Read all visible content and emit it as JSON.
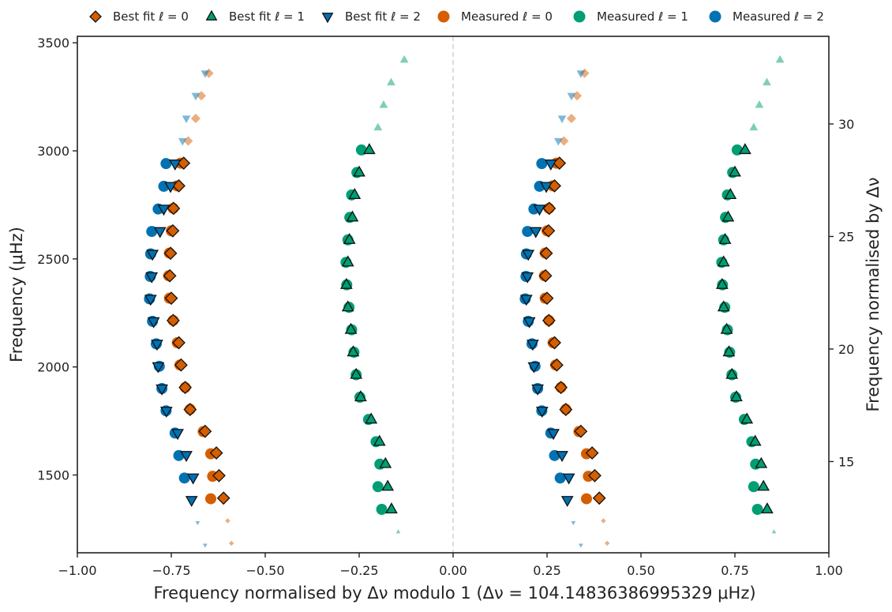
{
  "chart_data": {
    "type": "scatter",
    "xlabel": "Frequency normalised by Δν modulo 1 (Δν = 104.14836386995329 μHz)",
    "ylabel": "Frequency (μHz)",
    "y2label": "Frequency normalised by Δν",
    "xlim": [
      -1.0,
      1.0
    ],
    "ylim": [
      1140,
      3530
    ],
    "y2lim": [
      10.946,
      33.894
    ],
    "xticks": [
      -1.0,
      -0.75,
      -0.5,
      -0.25,
      0.0,
      0.25,
      0.5,
      0.75,
      1.0
    ],
    "xtick_labels": [
      "−1.00",
      "−0.75",
      "−0.50",
      "−0.25",
      "0.00",
      "0.25",
      "0.50",
      "0.75",
      "1.00"
    ],
    "yticks": [
      1500,
      2000,
      2500,
      3000,
      3500
    ],
    "ytick_labels": [
      "1500",
      "2000",
      "2500",
      "3000",
      "3500"
    ],
    "y2ticks": [
      15,
      20,
      25,
      30
    ],
    "y2tick_labels": [
      "15",
      "20",
      "25",
      "30"
    ],
    "grid": false,
    "mirror": {
      "offset": 1.0,
      "divider_x": 0.0
    },
    "legend": {
      "placement": "top",
      "entries": [
        {
          "label": "Best fit ℓ = 0",
          "marker": "diamond",
          "color": "#d55e00"
        },
        {
          "label": "Best fit ℓ = 1",
          "marker": "triangle-up",
          "color": "#009e73"
        },
        {
          "label": "Best fit ℓ = 2",
          "marker": "triangle-down",
          "color": "#0072b2"
        },
        {
          "label": "Measured ℓ = 0",
          "marker": "circle",
          "color": "#d55e00"
        },
        {
          "label": "Measured ℓ = 1",
          "marker": "circle",
          "color": "#009e73"
        },
        {
          "label": "Measured ℓ = 2",
          "marker": "circle",
          "color": "#0072b2"
        }
      ]
    },
    "series": [
      {
        "name": "Best fit ℓ = 0",
        "marker": "diamond",
        "color": "#d55e00",
        "points": [
          [
            -0.59,
            1184,
            0.5
          ],
          [
            -0.6,
            1288,
            0.5
          ],
          [
            -0.611,
            1393,
            1
          ],
          [
            -0.623,
            1497,
            1
          ],
          [
            -0.63,
            1602,
            1
          ],
          [
            -0.66,
            1702,
            1
          ],
          [
            -0.7,
            1803,
            1
          ],
          [
            -0.713,
            1905,
            1
          ],
          [
            -0.724,
            2009,
            1
          ],
          [
            -0.73,
            2112,
            1
          ],
          [
            -0.745,
            2215,
            1
          ],
          [
            -0.75,
            2318,
            1
          ],
          [
            -0.754,
            2422,
            1
          ],
          [
            -0.752,
            2526,
            1
          ],
          [
            -0.746,
            2630,
            1
          ],
          [
            -0.744,
            2734,
            1
          ],
          [
            -0.73,
            2838,
            1
          ],
          [
            -0.717,
            2943,
            1
          ],
          [
            -0.705,
            3046,
            0.5
          ],
          [
            -0.685,
            3150,
            0.5
          ],
          [
            -0.67,
            3255,
            0.5
          ],
          [
            -0.65,
            3359,
            0.5
          ]
        ]
      },
      {
        "name": "Best fit ℓ = 1",
        "marker": "triangle-up",
        "color": "#009e73",
        "points": [
          [
            -0.146,
            1237,
            0.5
          ],
          [
            -0.164,
            1341,
            1
          ],
          [
            -0.174,
            1446,
            1
          ],
          [
            -0.18,
            1551,
            1
          ],
          [
            -0.196,
            1654,
            1
          ],
          [
            -0.218,
            1757,
            1
          ],
          [
            -0.246,
            1860,
            1
          ],
          [
            -0.258,
            1964,
            1
          ],
          [
            -0.266,
            2068,
            1
          ],
          [
            -0.272,
            2172,
            1
          ],
          [
            -0.28,
            2276,
            1
          ],
          [
            -0.284,
            2380,
            1
          ],
          [
            -0.28,
            2484,
            1
          ],
          [
            -0.276,
            2588,
            1
          ],
          [
            -0.268,
            2692,
            1
          ],
          [
            -0.262,
            2796,
            1
          ],
          [
            -0.25,
            2900,
            1
          ],
          [
            -0.223,
            3004,
            1
          ],
          [
            -0.2,
            3108,
            0.5
          ],
          [
            -0.185,
            3212,
            0.5
          ],
          [
            -0.165,
            3316,
            0.5
          ],
          [
            -0.13,
            3421,
            0.5
          ]
        ]
      },
      {
        "name": "Best fit ℓ = 2",
        "marker": "triangle-down",
        "color": "#0072b2",
        "points": [
          [
            -0.66,
            1175,
            0.5
          ],
          [
            -0.68,
            1279,
            0.5
          ],
          [
            -0.696,
            1384,
            1
          ],
          [
            -0.692,
            1488,
            1
          ],
          [
            -0.71,
            1592,
            1
          ],
          [
            -0.733,
            1694,
            1
          ],
          [
            -0.763,
            1797,
            1
          ],
          [
            -0.775,
            1900,
            1
          ],
          [
            -0.785,
            2003,
            1
          ],
          [
            -0.788,
            2107,
            1
          ],
          [
            -0.797,
            2211,
            1
          ],
          [
            -0.805,
            2315,
            1
          ],
          [
            -0.802,
            2419,
            1
          ],
          [
            -0.8,
            2523,
            1
          ],
          [
            -0.78,
            2628,
            1
          ],
          [
            -0.77,
            2732,
            1
          ],
          [
            -0.752,
            2837,
            1
          ],
          [
            -0.74,
            2941,
            1
          ],
          [
            -0.72,
            3046,
            0.5
          ],
          [
            -0.71,
            3150,
            0.5
          ],
          [
            -0.685,
            3255,
            0.5
          ],
          [
            -0.66,
            3359,
            0.5
          ]
        ]
      },
      {
        "name": "Measured ℓ = 0",
        "marker": "circle",
        "color": "#d55e00",
        "points": [
          [
            -0.645,
            1390
          ],
          [
            -0.64,
            1494
          ],
          [
            -0.645,
            1598
          ],
          [
            -0.665,
            1701
          ],
          [
            -0.7,
            1804
          ],
          [
            -0.713,
            1905
          ],
          [
            -0.727,
            2009
          ],
          [
            -0.734,
            2112
          ],
          [
            -0.745,
            2215
          ],
          [
            -0.755,
            2318
          ],
          [
            -0.757,
            2422
          ],
          [
            -0.755,
            2527
          ],
          [
            -0.75,
            2630
          ],
          [
            -0.745,
            2734
          ],
          [
            -0.735,
            2838
          ],
          [
            -0.725,
            2943
          ]
        ]
      },
      {
        "name": "Measured ℓ = 1",
        "marker": "circle",
        "color": "#009e73",
        "points": [
          [
            -0.19,
            1341
          ],
          [
            -0.2,
            1446
          ],
          [
            -0.195,
            1550
          ],
          [
            -0.205,
            1654
          ],
          [
            -0.225,
            1757
          ],
          [
            -0.248,
            1860
          ],
          [
            -0.258,
            1964
          ],
          [
            -0.264,
            2068
          ],
          [
            -0.27,
            2172
          ],
          [
            -0.277,
            2276
          ],
          [
            -0.283,
            2380
          ],
          [
            -0.285,
            2484
          ],
          [
            -0.28,
            2588
          ],
          [
            -0.275,
            2692
          ],
          [
            -0.27,
            2796
          ],
          [
            -0.256,
            2900
          ],
          [
            -0.244,
            3004
          ]
        ]
      },
      {
        "name": "Measured ℓ = 2",
        "marker": "circle",
        "color": "#0072b2",
        "points": [
          [
            -0.715,
            1486
          ],
          [
            -0.73,
            1590
          ],
          [
            -0.74,
            1694
          ],
          [
            -0.764,
            1797
          ],
          [
            -0.775,
            1900
          ],
          [
            -0.782,
            2003
          ],
          [
            -0.79,
            2107
          ],
          [
            -0.8,
            2211
          ],
          [
            -0.808,
            2315
          ],
          [
            -0.806,
            2419
          ],
          [
            -0.805,
            2523
          ],
          [
            -0.802,
            2627
          ],
          [
            -0.785,
            2731
          ],
          [
            -0.77,
            2836
          ],
          [
            -0.764,
            2941
          ]
        ]
      }
    ]
  }
}
